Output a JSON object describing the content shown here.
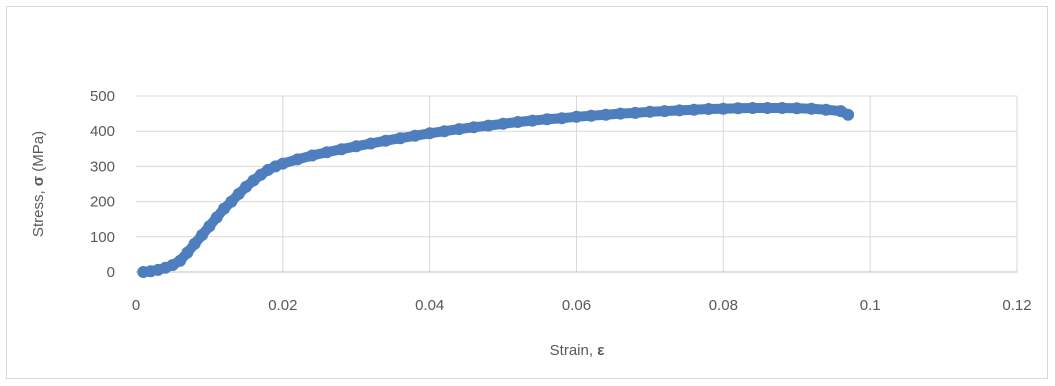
{
  "chart_data": {
    "type": "scatter",
    "title": "",
    "xlabel": "Strain, ",
    "xlabel_symbol": "ε",
    "ylabel": "Stress, ",
    "ylabel_symbol": "σ",
    "ylabel_unit": " (MPa)",
    "xlim": [
      0,
      0.12
    ],
    "ylim": [
      0,
      500
    ],
    "x_ticks": [
      "0",
      "0.02",
      "0.04",
      "0.06",
      "0.08",
      "0.1",
      "0.12"
    ],
    "y_ticks": [
      "0",
      "100",
      "200",
      "300",
      "400",
      "500"
    ],
    "grid": true,
    "legend": "none",
    "series": [
      {
        "color": "#4e7ebd",
        "x": [
          0.001,
          0.002,
          0.003,
          0.004,
          0.005,
          0.006,
          0.007,
          0.008,
          0.009,
          0.01,
          0.011,
          0.012,
          0.013,
          0.014,
          0.015,
          0.016,
          0.017,
          0.018,
          0.019,
          0.02,
          0.022,
          0.024,
          0.026,
          0.028,
          0.03,
          0.032,
          0.034,
          0.036,
          0.038,
          0.04,
          0.042,
          0.044,
          0.046,
          0.048,
          0.05,
          0.052,
          0.054,
          0.056,
          0.058,
          0.06,
          0.062,
          0.064,
          0.066,
          0.068,
          0.07,
          0.072,
          0.074,
          0.076,
          0.078,
          0.08,
          0.082,
          0.084,
          0.086,
          0.088,
          0.09,
          0.092,
          0.094,
          0.096,
          0.097
        ],
        "y": [
          0,
          2,
          6,
          12,
          20,
          32,
          55,
          80,
          105,
          130,
          155,
          180,
          200,
          222,
          242,
          260,
          276,
          290,
          300,
          308,
          320,
          331,
          340,
          349,
          357,
          365,
          373,
          380,
          387,
          394,
          400,
          406,
          411,
          416,
          421,
          426,
          430,
          434,
          437,
          441,
          444,
          447,
          450,
          452,
          455,
          457,
          459,
          461,
          463,
          464,
          465,
          466,
          466,
          466,
          465,
          464,
          461,
          457,
          447
        ]
      }
    ]
  }
}
